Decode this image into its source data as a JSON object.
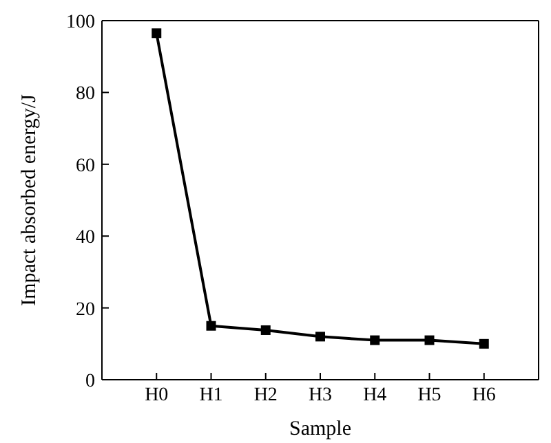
{
  "chart_data": {
    "type": "line",
    "xlabel": "Sample",
    "ylabel": "Impact absorbed energy/J",
    "categories": [
      "H0",
      "H1",
      "H2",
      "H3",
      "H4",
      "H5",
      "H6"
    ],
    "series": [
      {
        "color": "#000000",
        "values": [
          96.5,
          15,
          13.8,
          12,
          11,
          11,
          10
        ]
      }
    ],
    "ylim": [
      0,
      100
    ],
    "yticks": [
      0,
      20,
      40,
      60,
      80,
      100
    ],
    "grid": false,
    "legend": false,
    "marker": "square",
    "line_style": "solid"
  }
}
